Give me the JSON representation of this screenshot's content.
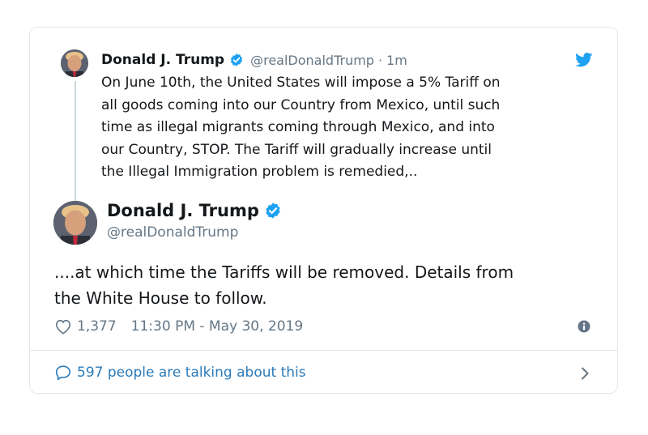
{
  "quoted_tweet": {
    "display_name": "Donald J. Trump",
    "handle": "@realDonaldTrump",
    "separator": "·",
    "relative_time": "1m",
    "text": "On June 10th, the United States will impose a 5% Tariff on\nall goods coming into our Country from Mexico, until such\ntime as illegal migrants coming through Mexico, and into\nour Country, STOP. The Tariff will gradually increase until\nthe Illegal Immigration problem is remedied,.."
  },
  "main_tweet": {
    "display_name": "Donald J. Trump",
    "handle": "@realDonaldTrump",
    "text": "....at which time the Tariffs will be removed. Details from\nthe White House to follow.",
    "likes": "1,377",
    "timestamp": "11:30 PM - May 30, 2019"
  },
  "footer": {
    "talking_label": "597 people are talking about this"
  },
  "icons": {
    "verified": "verified-badge-icon",
    "brand": "twitter-bird-icon",
    "like": "heart-icon",
    "info": "info-icon",
    "reply": "speech-bubble-icon",
    "chevron": "chevron-right-icon"
  },
  "colors": {
    "brand_blue": "#1da1f2",
    "link_blue": "#2b7bb9",
    "muted_text": "#657786",
    "border": "#e1e8ed"
  }
}
